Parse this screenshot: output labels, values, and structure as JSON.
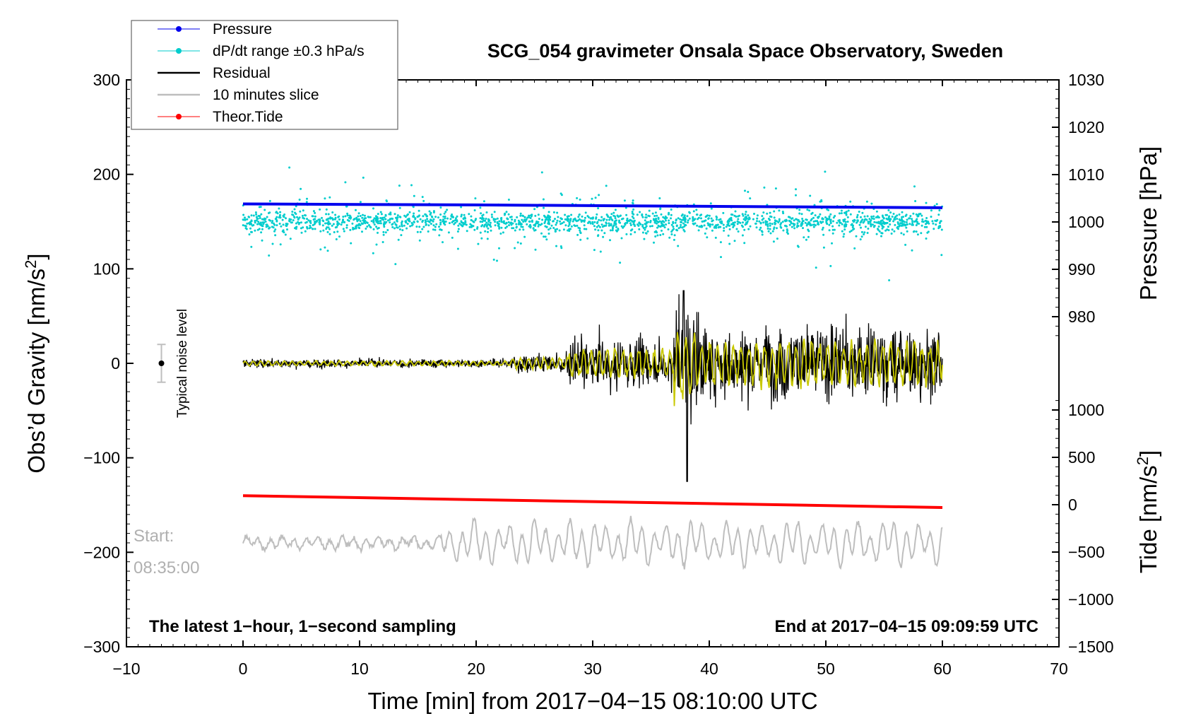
{
  "chart_data": {
    "type": "line",
    "title": "SCG_054 gravimeter Onsala Space Observatory, Sweden",
    "xlabel": "Time [min] from 2017−04−15 08:10:00 UTC",
    "ylabel_left": "Obs’d Gravity [nm/s",
    "ylabel_left_sup": "2",
    "ylabel_left_end": "]",
    "ylabel_right_pressure": "Pressure [hPa]",
    "ylabel_right_tide": "Tide [nm/s",
    "ylabel_right_tide_sup": "2",
    "ylabel_right_tide_end": "]",
    "xlim": [
      -10,
      70
    ],
    "ylim_left": [
      -300,
      300
    ],
    "pressure_ylim": [
      980,
      1030
    ],
    "tide_ylim": [
      -1500,
      1000
    ],
    "x_ticks": [
      "−10",
      "0",
      "10",
      "20",
      "30",
      "40",
      "50",
      "60",
      "70"
    ],
    "left_ticks": [
      "300",
      "200",
      "100",
      "0",
      "−100",
      "−200",
      "−300"
    ],
    "pressure_ticks": [
      "1030",
      "1020",
      "1010",
      "1000",
      "990",
      "980"
    ],
    "tide_ticks": [
      "1000",
      "500",
      "0",
      "−500",
      "−1000",
      "−1500"
    ],
    "series": [
      {
        "name": "Pressure",
        "unit": "hPa",
        "x": [
          0,
          20,
          40,
          60
        ],
        "values": [
          1003.8,
          1003.6,
          1003.3,
          1003.0
        ]
      },
      {
        "name": "dP/dt range ±0.3 hPa/s",
        "unit": "nm/s2",
        "center": 150,
        "spread": 20
      },
      {
        "name": "Residual",
        "unit": "nm/s2",
        "segments": [
          {
            "x0": 0,
            "x1": 23,
            "amp": 5
          },
          {
            "x0": 23,
            "x1": 28,
            "amp": 12
          },
          {
            "x0": 28,
            "x1": 37,
            "amp": 30
          },
          {
            "x0": 37,
            "x1": 39,
            "amp": 75
          },
          {
            "x0": 39,
            "x1": 60,
            "amp": 45
          }
        ],
        "min": -125,
        "max": 77
      },
      {
        "name": "10 minutes slice",
        "unit": "nm/s2",
        "x_range": [
          0,
          60
        ],
        "baseline": -190,
        "amp_min": 8,
        "amp_max": 30
      },
      {
        "name": "Theor.Tide",
        "unit": "nm/s2",
        "x": [
          0,
          60
        ],
        "values": [
          95,
          -30
        ]
      }
    ],
    "legend": {
      "placement": "top-left",
      "entries": [
        {
          "label": "Pressure",
          "color": "#0000ee",
          "marker": "dot"
        },
        {
          "label": "dP/dt range ±0.3 hPa/s",
          "color": "#00cdcd",
          "marker": "dot"
        },
        {
          "label": "Residual",
          "color": "#000000",
          "marker": "line"
        },
        {
          "label": "10 minutes slice",
          "color": "#bebebe",
          "marker": "line"
        },
        {
          "label": "Theor.Tide",
          "color": "#ff0000",
          "marker": "dot"
        }
      ]
    },
    "annotations": {
      "start_label": "Start:",
      "start_time": "08:35:00",
      "noise_label": "Typical noise level",
      "noise_range": [
        -20,
        20
      ],
      "bottom_left": "The latest 1−hour, 1−second sampling",
      "bottom_right": "End at 2017−04−15 09:09:59 UTC"
    },
    "colors": {
      "pressure": "#0000ee",
      "dpdt": "#00cdcd",
      "residual": "#000000",
      "filtered": "#c8c800",
      "slice": "#bebebe",
      "tide": "#ff0000",
      "noise_bar": "#bebebe"
    }
  }
}
